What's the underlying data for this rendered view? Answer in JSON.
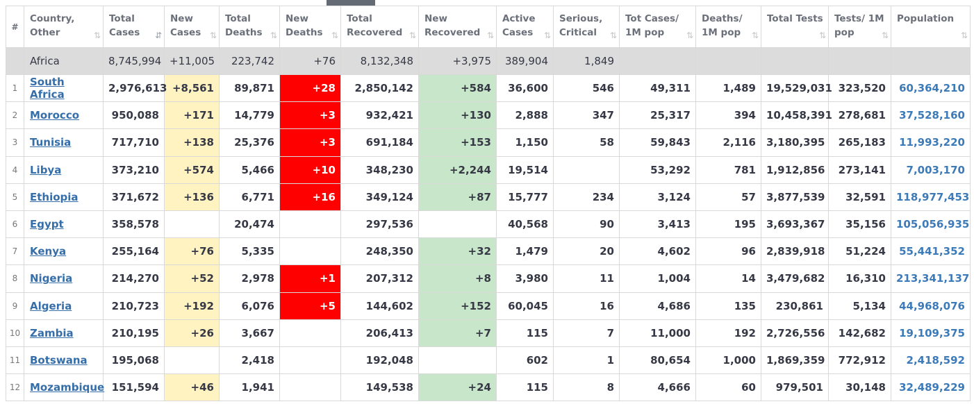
{
  "header": {
    "hash": "#",
    "country": "Country, Other",
    "total_cases": "Total Cases",
    "new_cases": "New Cases",
    "total_deaths": "Total Deaths",
    "new_deaths": "New Deaths",
    "total_recovered": "Total Recovered",
    "new_recovered": "New Recovered",
    "active_cases": "Active Cases",
    "serious": "Serious, Critical",
    "cases_per_m": "Tot Cases/ 1M pop",
    "deaths_per_m": "Deaths/ 1M pop",
    "total_tests": "Total Tests",
    "tests_per_m": "Tests/ 1M pop",
    "population": "Population",
    "sort_icon": "⇅",
    "sort_active_icon": "⇵"
  },
  "continent": {
    "name": "Africa",
    "total_cases": "8,745,994",
    "new_cases": "+11,005",
    "total_deaths": "223,742",
    "new_deaths": "+76",
    "total_recovered": "8,132,348",
    "new_recovered": "+3,975",
    "active_cases": "389,904",
    "serious": "1,849"
  },
  "colors": {
    "new_cases_bg": "#fff3c2",
    "new_deaths_bg": "#ff0000",
    "new_recovered_bg": "#c8e6c9",
    "continent_bg": "#dcdcdc",
    "link": "#356ea8"
  },
  "rows": [
    {
      "idx": "1",
      "country": "South Africa",
      "total_cases": "2,976,613",
      "new_cases": "+8,561",
      "total_deaths": "89,871",
      "new_deaths": "+28",
      "total_recovered": "2,850,142",
      "new_recovered": "+584",
      "active": "36,600",
      "serious": "546",
      "cases_per_m": "49,311",
      "deaths_per_m": "1,489",
      "tests": "19,529,031",
      "tests_per_m": "323,520",
      "population": "60,364,210"
    },
    {
      "idx": "2",
      "country": "Morocco",
      "total_cases": "950,088",
      "new_cases": "+171",
      "total_deaths": "14,779",
      "new_deaths": "+3",
      "total_recovered": "932,421",
      "new_recovered": "+130",
      "active": "2,888",
      "serious": "347",
      "cases_per_m": "25,317",
      "deaths_per_m": "394",
      "tests": "10,458,391",
      "tests_per_m": "278,681",
      "population": "37,528,160"
    },
    {
      "idx": "3",
      "country": "Tunisia",
      "total_cases": "717,710",
      "new_cases": "+138",
      "total_deaths": "25,376",
      "new_deaths": "+3",
      "total_recovered": "691,184",
      "new_recovered": "+153",
      "active": "1,150",
      "serious": "58",
      "cases_per_m": "59,843",
      "deaths_per_m": "2,116",
      "tests": "3,180,395",
      "tests_per_m": "265,183",
      "population": "11,993,220"
    },
    {
      "idx": "4",
      "country": "Libya",
      "total_cases": "373,210",
      "new_cases": "+574",
      "total_deaths": "5,466",
      "new_deaths": "+10",
      "total_recovered": "348,230",
      "new_recovered": "+2,244",
      "active": "19,514",
      "serious": "",
      "cases_per_m": "53,292",
      "deaths_per_m": "781",
      "tests": "1,912,856",
      "tests_per_m": "273,141",
      "population": "7,003,170"
    },
    {
      "idx": "5",
      "country": "Ethiopia",
      "total_cases": "371,672",
      "new_cases": "+136",
      "total_deaths": "6,771",
      "new_deaths": "+16",
      "total_recovered": "349,124",
      "new_recovered": "+87",
      "active": "15,777",
      "serious": "234",
      "cases_per_m": "3,124",
      "deaths_per_m": "57",
      "tests": "3,877,539",
      "tests_per_m": "32,591",
      "population": "118,977,453"
    },
    {
      "idx": "6",
      "country": "Egypt",
      "total_cases": "358,578",
      "new_cases": "",
      "total_deaths": "20,474",
      "new_deaths": "",
      "total_recovered": "297,536",
      "new_recovered": "",
      "active": "40,568",
      "serious": "90",
      "cases_per_m": "3,413",
      "deaths_per_m": "195",
      "tests": "3,693,367",
      "tests_per_m": "35,156",
      "population": "105,056,935"
    },
    {
      "idx": "7",
      "country": "Kenya",
      "total_cases": "255,164",
      "new_cases": "+76",
      "total_deaths": "5,335",
      "new_deaths": "",
      "total_recovered": "248,350",
      "new_recovered": "+32",
      "active": "1,479",
      "serious": "20",
      "cases_per_m": "4,602",
      "deaths_per_m": "96",
      "tests": "2,839,918",
      "tests_per_m": "51,224",
      "population": "55,441,352"
    },
    {
      "idx": "8",
      "country": "Nigeria",
      "total_cases": "214,270",
      "new_cases": "+52",
      "total_deaths": "2,978",
      "new_deaths": "+1",
      "total_recovered": "207,312",
      "new_recovered": "+8",
      "active": "3,980",
      "serious": "11",
      "cases_per_m": "1,004",
      "deaths_per_m": "14",
      "tests": "3,479,682",
      "tests_per_m": "16,310",
      "population": "213,341,137"
    },
    {
      "idx": "9",
      "country": "Algeria",
      "total_cases": "210,723",
      "new_cases": "+192",
      "total_deaths": "6,076",
      "new_deaths": "+5",
      "total_recovered": "144,602",
      "new_recovered": "+152",
      "active": "60,045",
      "serious": "16",
      "cases_per_m": "4,686",
      "deaths_per_m": "135",
      "tests": "230,861",
      "tests_per_m": "5,134",
      "population": "44,968,076"
    },
    {
      "idx": "10",
      "country": "Zambia",
      "total_cases": "210,195",
      "new_cases": "+26",
      "total_deaths": "3,667",
      "new_deaths": "",
      "total_recovered": "206,413",
      "new_recovered": "+7",
      "active": "115",
      "serious": "7",
      "cases_per_m": "11,000",
      "deaths_per_m": "192",
      "tests": "2,726,556",
      "tests_per_m": "142,682",
      "population": "19,109,375"
    },
    {
      "idx": "11",
      "country": "Botswana",
      "total_cases": "195,068",
      "new_cases": "",
      "total_deaths": "2,418",
      "new_deaths": "",
      "total_recovered": "192,048",
      "new_recovered": "",
      "active": "602",
      "serious": "1",
      "cases_per_m": "80,654",
      "deaths_per_m": "1,000",
      "tests": "1,869,359",
      "tests_per_m": "772,912",
      "population": "2,418,592"
    },
    {
      "idx": "12",
      "country": "Mozambique",
      "total_cases": "151,594",
      "new_cases": "+46",
      "total_deaths": "1,941",
      "new_deaths": "",
      "total_recovered": "149,538",
      "new_recovered": "+24",
      "active": "115",
      "serious": "8",
      "cases_per_m": "4,666",
      "deaths_per_m": "60",
      "tests": "979,501",
      "tests_per_m": "30,148",
      "population": "32,489,229"
    }
  ]
}
